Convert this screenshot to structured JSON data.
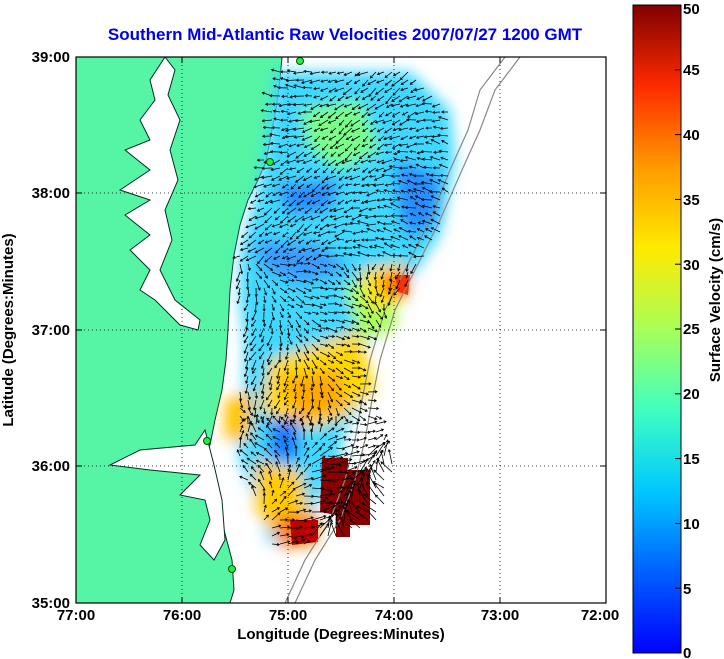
{
  "title": "Southern Mid-Atlantic Raw Velocities 2007/07/27 1200 GMT",
  "map": {
    "xlabel": "Longitude (Degrees:Minutes)",
    "ylabel": "Latitude (Degrees:Minutes)",
    "x_ticks": [
      "77:00",
      "76:00",
      "75:00",
      "74:00",
      "73:00",
      "72:00"
    ],
    "y_ticks": [
      "39:00",
      "38:00",
      "37:00",
      "36:00",
      "35:00"
    ],
    "lon_range": [
      -77,
      -72
    ],
    "lat_range": [
      35,
      39
    ],
    "land_color": "#55f5a5",
    "grid": "dotted"
  },
  "colorbar": {
    "label": "Surface Velocity (cm/s)",
    "range": [
      0,
      50
    ],
    "ticks": [
      "0",
      "5",
      "10",
      "15",
      "20",
      "25",
      "30",
      "35",
      "40",
      "45",
      "50"
    ],
    "colormap": "jet"
  },
  "chart_data": {
    "type": "heatmap",
    "title": "Southern Mid-Atlantic Raw Velocities 2007/07/27 1200 GMT",
    "xlabel": "Longitude (Degrees:Minutes)",
    "ylabel": "Latitude (Degrees:Minutes)",
    "xlim": [
      -77,
      -72
    ],
    "ylim": [
      35,
      39
    ],
    "value_range": [
      0,
      50
    ],
    "units": "cm/s",
    "grid": true,
    "regions": [
      {
        "lon": [
          -74.9,
          -73.8
        ],
        "lat": [
          38.0,
          38.9
        ],
        "speed": 12
      },
      {
        "lon": [
          -74.3,
          -73.9
        ],
        "lat": [
          37.7,
          38.0
        ],
        "speed": 5
      },
      {
        "lon": [
          -75.1,
          -74.5
        ],
        "lat": [
          37.9,
          38.1
        ],
        "speed": 7
      },
      {
        "lon": [
          -74.1,
          -73.6
        ],
        "lat": [
          37.2,
          37.4
        ],
        "speed": 32
      },
      {
        "lon": [
          -74.9,
          -74.0
        ],
        "lat": [
          36.5,
          37.2
        ],
        "speed": 25
      },
      {
        "lon": [
          -75.2,
          -74.3
        ],
        "lat": [
          36.2,
          36.6
        ],
        "speed": 26
      },
      {
        "lon": [
          -75.0,
          -74.7
        ],
        "lat": [
          35.9,
          36.2
        ],
        "speed": 9
      },
      {
        "lon": [
          -74.7,
          -74.2
        ],
        "lat": [
          35.6,
          36.0
        ],
        "speed": 50
      },
      {
        "lon": [
          -75.0,
          -74.6
        ],
        "lat": [
          35.4,
          35.6
        ],
        "speed": 45
      },
      {
        "lon": [
          -75.6,
          -75.3
        ],
        "lat": [
          36.4,
          36.8
        ],
        "speed": 30
      }
    ]
  }
}
